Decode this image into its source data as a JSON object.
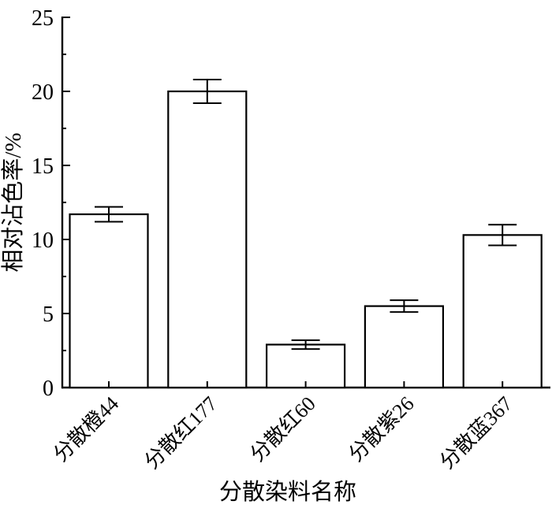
{
  "figure": {
    "background": "#ffffff",
    "stroke_color": "#000000"
  },
  "chart_data": {
    "type": "bar",
    "title": "",
    "categories": [
      "分散橙44",
      "分散红177",
      "分散红60",
      "分散紫26",
      "分散蓝367"
    ],
    "values": [
      11.7,
      20.0,
      2.9,
      5.5,
      10.3
    ],
    "errors": [
      0.5,
      0.8,
      0.3,
      0.4,
      0.7
    ],
    "xlabel": "分散染料名称",
    "ylabel": "相对沾色率/%",
    "ylim": [
      0,
      25
    ],
    "yticks": [
      0,
      5,
      10,
      15,
      20,
      25
    ],
    "yminor_step": 2.5,
    "grid": false,
    "legend": false,
    "bar_fill": "#ffffff",
    "bar_stroke": "#000000",
    "error_bar_color": "#000000",
    "axis_color": "#000000"
  }
}
